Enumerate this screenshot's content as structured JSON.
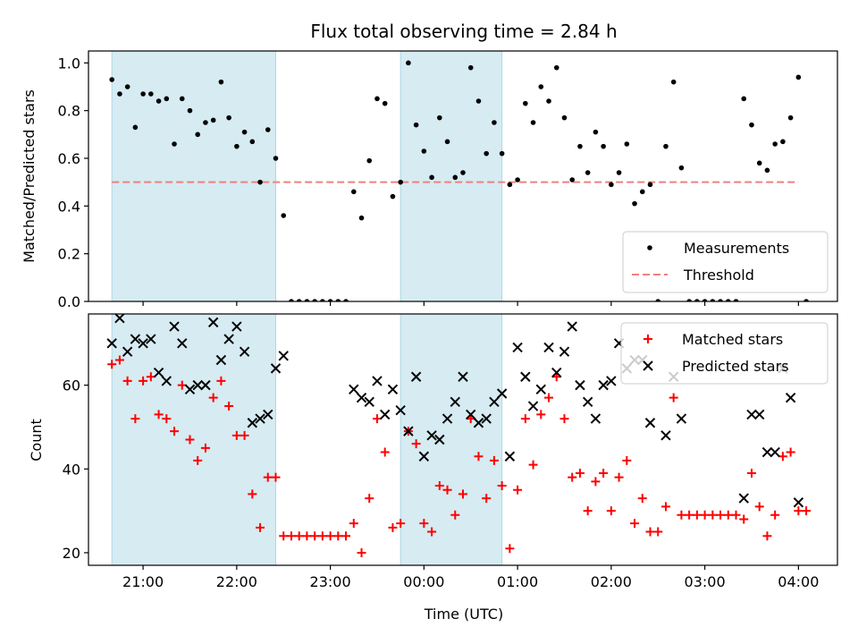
{
  "chart_data": [
    {
      "type": "scatter",
      "title": "Flux total observing time = 2.84 h",
      "ylabel": "Matched/Predicted stars",
      "xlabel": "",
      "xlim": [
        "20:25",
        "04:25"
      ],
      "ylim": [
        0,
        1.05
      ],
      "x_ticks": [
        "21:00",
        "22:00",
        "23:00",
        "00:00",
        "01:00",
        "02:00",
        "03:00",
        "04:00"
      ],
      "y_ticks": [
        "0.0",
        "0.2",
        "0.4",
        "0.6",
        "0.8",
        "1.0"
      ],
      "shaded_intervals": [
        [
          "20:40",
          "22:25"
        ],
        [
          "23:45",
          "00:50"
        ]
      ],
      "legend": {
        "placement": "lower right",
        "items": [
          "Measurements",
          "Threshold"
        ]
      },
      "threshold": {
        "value": 0.5,
        "x_range": [
          "20:40",
          "04:00"
        ],
        "color": "#f08080"
      },
      "series": [
        {
          "name": "Measurements",
          "marker": "dot",
          "color": "#000000",
          "points": [
            [
              "20:40",
              0.93
            ],
            [
              "20:45",
              0.87
            ],
            [
              "20:50",
              0.9
            ],
            [
              "20:55",
              0.73
            ],
            [
              "21:00",
              0.87
            ],
            [
              "21:05",
              0.87
            ],
            [
              "21:10",
              0.84
            ],
            [
              "21:15",
              0.85
            ],
            [
              "21:20",
              0.66
            ],
            [
              "21:25",
              0.85
            ],
            [
              "21:30",
              0.8
            ],
            [
              "21:35",
              0.7
            ],
            [
              "21:40",
              0.75
            ],
            [
              "21:45",
              0.76
            ],
            [
              "21:50",
              0.92
            ],
            [
              "21:55",
              0.77
            ],
            [
              "22:00",
              0.65
            ],
            [
              "22:05",
              0.71
            ],
            [
              "22:10",
              0.67
            ],
            [
              "22:15",
              0.5
            ],
            [
              "22:20",
              0.72
            ],
            [
              "22:25",
              0.6
            ],
            [
              "22:30",
              0.36
            ],
            [
              "22:35",
              0.0
            ],
            [
              "22:40",
              0.0
            ],
            [
              "22:45",
              0.0
            ],
            [
              "22:50",
              0.0
            ],
            [
              "22:55",
              0.0
            ],
            [
              "23:00",
              0.0
            ],
            [
              "23:05",
              0.0
            ],
            [
              "23:10",
              0.0
            ],
            [
              "23:15",
              0.46
            ],
            [
              "23:20",
              0.35
            ],
            [
              "23:25",
              0.59
            ],
            [
              "23:30",
              0.85
            ],
            [
              "23:35",
              0.83
            ],
            [
              "23:40",
              0.44
            ],
            [
              "23:45",
              0.5
            ],
            [
              "23:50",
              1.0
            ],
            [
              "23:55",
              0.74
            ],
            [
              "00:00",
              0.63
            ],
            [
              "00:05",
              0.52
            ],
            [
              "00:10",
              0.77
            ],
            [
              "00:15",
              0.67
            ],
            [
              "00:20",
              0.52
            ],
            [
              "00:25",
              0.54
            ],
            [
              "00:30",
              0.98
            ],
            [
              "00:35",
              0.84
            ],
            [
              "00:40",
              0.62
            ],
            [
              "00:45",
              0.75
            ],
            [
              "00:50",
              0.62
            ],
            [
              "00:55",
              0.49
            ],
            [
              "01:00",
              0.51
            ],
            [
              "01:05",
              0.83
            ],
            [
              "01:10",
              0.75
            ],
            [
              "01:15",
              0.9
            ],
            [
              "01:20",
              0.84
            ],
            [
              "01:25",
              0.98
            ],
            [
              "01:30",
              0.77
            ],
            [
              "01:35",
              0.51
            ],
            [
              "01:40",
              0.65
            ],
            [
              "01:45",
              0.54
            ],
            [
              "01:50",
              0.71
            ],
            [
              "01:55",
              0.65
            ],
            [
              "02:00",
              0.49
            ],
            [
              "02:05",
              0.54
            ],
            [
              "02:10",
              0.66
            ],
            [
              "02:15",
              0.41
            ],
            [
              "02:20",
              0.46
            ],
            [
              "02:25",
              0.49
            ],
            [
              "02:30",
              0.0
            ],
            [
              "02:35",
              0.65
            ],
            [
              "02:40",
              0.92
            ],
            [
              "02:45",
              0.56
            ],
            [
              "02:50",
              0.0
            ],
            [
              "02:55",
              0.0
            ],
            [
              "03:00",
              0.0
            ],
            [
              "03:05",
              0.0
            ],
            [
              "03:10",
              0.0
            ],
            [
              "03:15",
              0.0
            ],
            [
              "03:20",
              0.0
            ],
            [
              "03:25",
              0.85
            ],
            [
              "03:30",
              0.74
            ],
            [
              "03:35",
              0.58
            ],
            [
              "03:40",
              0.55
            ],
            [
              "03:45",
              0.66
            ],
            [
              "03:50",
              0.67
            ],
            [
              "03:55",
              0.77
            ],
            [
              "04:00",
              0.94
            ],
            [
              "04:05",
              0.0
            ]
          ]
        }
      ]
    },
    {
      "type": "scatter",
      "title": "",
      "ylabel": "Count",
      "xlabel": "Time (UTC)",
      "xlim": [
        "20:25",
        "04:25"
      ],
      "ylim": [
        17,
        77
      ],
      "x_ticks": [
        "21:00",
        "22:00",
        "23:00",
        "00:00",
        "01:00",
        "02:00",
        "03:00",
        "04:00"
      ],
      "y_ticks": [
        "20",
        "40",
        "60"
      ],
      "shaded_intervals": [
        [
          "20:40",
          "22:25"
        ],
        [
          "23:45",
          "00:50"
        ]
      ],
      "legend": {
        "placement": "upper right",
        "items": [
          "Matched stars",
          "Predicted stars"
        ]
      },
      "series": [
        {
          "name": "Matched stars",
          "marker": "plus",
          "color": "#ff0000",
          "points": [
            [
              "20:40",
              65
            ],
            [
              "20:45",
              66
            ],
            [
              "20:50",
              61
            ],
            [
              "20:55",
              52
            ],
            [
              "21:00",
              61
            ],
            [
              "21:05",
              62
            ],
            [
              "21:10",
              53
            ],
            [
              "21:15",
              52
            ],
            [
              "21:20",
              49
            ],
            [
              "21:25",
              60
            ],
            [
              "21:30",
              47
            ],
            [
              "21:35",
              42
            ],
            [
              "21:40",
              45
            ],
            [
              "21:45",
              57
            ],
            [
              "21:50",
              61
            ],
            [
              "21:55",
              55
            ],
            [
              "22:00",
              48
            ],
            [
              "22:05",
              48
            ],
            [
              "22:10",
              34
            ],
            [
              "22:15",
              26
            ],
            [
              "22:20",
              38
            ],
            [
              "22:25",
              38
            ],
            [
              "22:30",
              24
            ],
            [
              "22:35",
              24
            ],
            [
              "22:40",
              24
            ],
            [
              "22:45",
              24
            ],
            [
              "22:50",
              24
            ],
            [
              "22:55",
              24
            ],
            [
              "23:00",
              24
            ],
            [
              "23:05",
              24
            ],
            [
              "23:10",
              24
            ],
            [
              "23:15",
              27
            ],
            [
              "23:20",
              20
            ],
            [
              "23:25",
              33
            ],
            [
              "23:30",
              52
            ],
            [
              "23:35",
              44
            ],
            [
              "23:40",
              26
            ],
            [
              "23:45",
              27
            ],
            [
              "23:50",
              49
            ],
            [
              "23:55",
              46
            ],
            [
              "00:00",
              27
            ],
            [
              "00:05",
              25
            ],
            [
              "00:10",
              36
            ],
            [
              "00:15",
              35
            ],
            [
              "00:20",
              29
            ],
            [
              "00:25",
              34
            ],
            [
              "00:30",
              52
            ],
            [
              "00:35",
              43
            ],
            [
              "00:40",
              33
            ],
            [
              "00:45",
              42
            ],
            [
              "00:50",
              36
            ],
            [
              "00:55",
              21
            ],
            [
              "01:00",
              35
            ],
            [
              "01:05",
              52
            ],
            [
              "01:10",
              41
            ],
            [
              "01:15",
              53
            ],
            [
              "01:20",
              57
            ],
            [
              "01:25",
              62
            ],
            [
              "01:30",
              52
            ],
            [
              "01:35",
              38
            ],
            [
              "01:40",
              39
            ],
            [
              "01:45",
              30
            ],
            [
              "01:50",
              37
            ],
            [
              "01:55",
              39
            ],
            [
              "02:00",
              30
            ],
            [
              "02:05",
              38
            ],
            [
              "02:10",
              42
            ],
            [
              "02:15",
              27
            ],
            [
              "02:20",
              33
            ],
            [
              "02:25",
              25
            ],
            [
              "02:30",
              25
            ],
            [
              "02:35",
              31
            ],
            [
              "02:40",
              57
            ],
            [
              "02:45",
              29
            ],
            [
              "02:50",
              29
            ],
            [
              "02:55",
              29
            ],
            [
              "03:00",
              29
            ],
            [
              "03:05",
              29
            ],
            [
              "03:10",
              29
            ],
            [
              "03:15",
              29
            ],
            [
              "03:20",
              29
            ],
            [
              "03:25",
              28
            ],
            [
              "03:30",
              39
            ],
            [
              "03:35",
              31
            ],
            [
              "03:40",
              24
            ],
            [
              "03:45",
              29
            ],
            [
              "03:50",
              43
            ],
            [
              "03:55",
              44
            ],
            [
              "04:00",
              30
            ],
            [
              "04:05",
              30
            ]
          ]
        },
        {
          "name": "Predicted stars",
          "marker": "x",
          "color": "#000000",
          "points": [
            [
              "20:40",
              70
            ],
            [
              "20:45",
              76
            ],
            [
              "20:50",
              68
            ],
            [
              "20:55",
              71
            ],
            [
              "21:00",
              70
            ],
            [
              "21:05",
              71
            ],
            [
              "21:10",
              63
            ],
            [
              "21:15",
              61
            ],
            [
              "21:20",
              74
            ],
            [
              "21:25",
              70
            ],
            [
              "21:30",
              59
            ],
            [
              "21:35",
              60
            ],
            [
              "21:40",
              60
            ],
            [
              "21:45",
              75
            ],
            [
              "21:50",
              66
            ],
            [
              "21:55",
              71
            ],
            [
              "22:00",
              74
            ],
            [
              "22:05",
              68
            ],
            [
              "22:10",
              51
            ],
            [
              "22:15",
              52
            ],
            [
              "22:20",
              53
            ],
            [
              "22:25",
              64
            ],
            [
              "22:30",
              67
            ],
            [
              "23:15",
              59
            ],
            [
              "23:20",
              57
            ],
            [
              "23:25",
              56
            ],
            [
              "23:30",
              61
            ],
            [
              "23:35",
              53
            ],
            [
              "23:40",
              59
            ],
            [
              "23:45",
              54
            ],
            [
              "23:50",
              49
            ],
            [
              "23:55",
              62
            ],
            [
              "00:00",
              43
            ],
            [
              "00:05",
              48
            ],
            [
              "00:10",
              47
            ],
            [
              "00:15",
              52
            ],
            [
              "00:20",
              56
            ],
            [
              "00:25",
              62
            ],
            [
              "00:30",
              53
            ],
            [
              "00:35",
              51
            ],
            [
              "00:40",
              52
            ],
            [
              "00:45",
              56
            ],
            [
              "00:50",
              58
            ],
            [
              "00:55",
              43
            ],
            [
              "01:00",
              69
            ],
            [
              "01:05",
              62
            ],
            [
              "01:10",
              55
            ],
            [
              "01:15",
              59
            ],
            [
              "01:20",
              69
            ],
            [
              "01:25",
              63
            ],
            [
              "01:30",
              68
            ],
            [
              "01:35",
              74
            ],
            [
              "01:40",
              60
            ],
            [
              "01:45",
              56
            ],
            [
              "01:50",
              52
            ],
            [
              "01:55",
              60
            ],
            [
              "02:00",
              61
            ],
            [
              "02:05",
              70
            ],
            [
              "02:10",
              64
            ],
            [
              "02:15",
              66
            ],
            [
              "02:20",
              66
            ],
            [
              "02:25",
              51
            ],
            [
              "02:35",
              48
            ],
            [
              "02:40",
              62
            ],
            [
              "02:45",
              52
            ],
            [
              "03:25",
              33
            ],
            [
              "03:30",
              53
            ],
            [
              "03:35",
              53
            ],
            [
              "03:40",
              44
            ],
            [
              "03:45",
              44
            ],
            [
              "03:50",
              64
            ],
            [
              "03:55",
              57
            ],
            [
              "04:00",
              32
            ]
          ]
        }
      ]
    }
  ]
}
